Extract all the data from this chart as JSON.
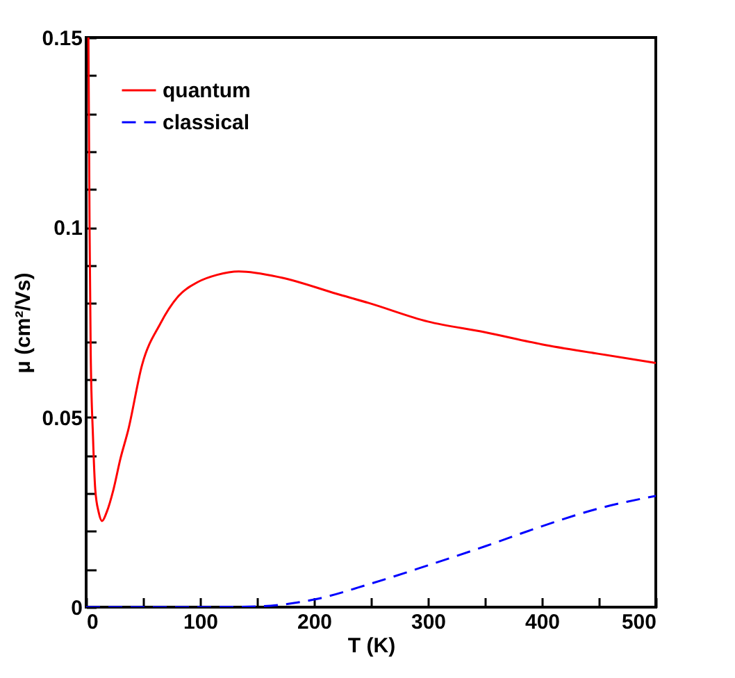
{
  "chart_data": {
    "type": "line",
    "xlabel": "T (K)",
    "ylabel": "μ (cm²/Vs)",
    "xlim": [
      0,
      500
    ],
    "ylim": [
      0,
      0.15
    ],
    "xticks": [
      0,
      {
        "value": 50,
        "label": null
      },
      100,
      {
        "value": 150,
        "label": null
      },
      200,
      {
        "value": 250,
        "label": null
      },
      300,
      {
        "value": 350,
        "label": null
      },
      400,
      {
        "value": 450,
        "label": null
      },
      500
    ],
    "yticks": [
      0,
      {
        "value": 0.01,
        "label": null
      },
      {
        "value": 0.02,
        "label": null
      },
      {
        "value": 0.03,
        "label": null
      },
      {
        "value": 0.04,
        "label": null
      },
      0.05,
      {
        "value": 0.06,
        "label": null
      },
      {
        "value": 0.07,
        "label": null
      },
      {
        "value": 0.08,
        "label": null
      },
      {
        "value": 0.09,
        "label": null
      },
      0.1,
      {
        "value": 0.11,
        "label": null
      },
      {
        "value": 0.12,
        "label": null
      },
      {
        "value": 0.13,
        "label": null
      },
      {
        "value": 0.14,
        "label": null
      },
      0.15
    ],
    "grid": false,
    "legend": "top left",
    "marker": "none",
    "series": [
      {
        "name": "quantum",
        "color": "#ff0000",
        "line_style": "solid",
        "x": [
          2,
          3,
          4,
          6,
          8,
          11,
          14,
          18,
          24,
          30,
          37,
          49,
          65,
          81,
          98,
          115,
          134,
          171,
          220,
          248,
          300,
          350,
          400,
          450,
          500
        ],
        "values": [
          0.15,
          0.1,
          0.067,
          0.045,
          0.031,
          0.025,
          0.0227,
          0.025,
          0.031,
          0.039,
          0.0467,
          0.0637,
          0.0746,
          0.0819,
          0.0856,
          0.0875,
          0.0884,
          0.0868,
          0.0825,
          0.0801,
          0.0752,
          0.0724,
          0.0692,
          0.0667,
          0.0643
        ]
      },
      {
        "name": "classical",
        "color": "#0000ff",
        "line_style": "dashed",
        "x": [
          0,
          100,
          150,
          200,
          250,
          300,
          350,
          400,
          450,
          500
        ],
        "values": [
          0,
          0,
          0.0002,
          0.002,
          0.0062,
          0.011,
          0.016,
          0.0213,
          0.026,
          0.0293
        ]
      }
    ]
  }
}
